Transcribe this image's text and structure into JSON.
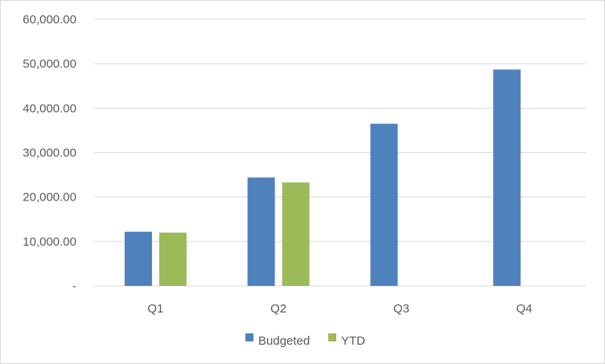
{
  "chart_data": {
    "type": "bar",
    "categories": [
      "Q1",
      "Q2",
      "Q3",
      "Q4"
    ],
    "series": [
      {
        "name": "Budgeted",
        "values": [
          12200,
          24400,
          36500,
          48700
        ],
        "color": "#4f81bd"
      },
      {
        "name": "YTD",
        "values": [
          12000,
          23300,
          null,
          null
        ],
        "color": "#9bbb59"
      }
    ],
    "y_ticks": [
      0,
      10000,
      20000,
      30000,
      40000,
      50000,
      60000
    ],
    "y_tick_labels": [
      "-",
      "10,000.00",
      "20,000.00",
      "30,000.00",
      "40,000.00",
      "50,000.00",
      "60,000.00"
    ],
    "ylim": [
      0,
      60000
    ],
    "grid": true,
    "legend_position": "bottom",
    "gridline_color": "#d9d9d9",
    "axis_color": "#d9d9d9"
  }
}
